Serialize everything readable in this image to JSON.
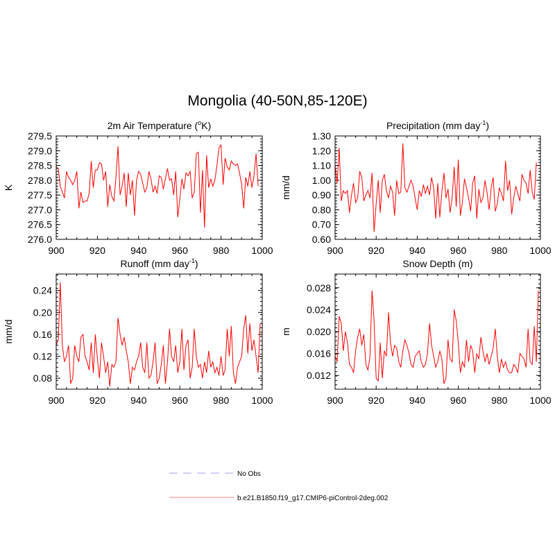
{
  "figure_title": "Mongolia (40-50N,85-120E)",
  "legend": {
    "entries": [
      {
        "label": "No Obs",
        "style": "dashed",
        "color": "#9c9cf0"
      },
      {
        "label": "b.e21.B1850.f19_g17.CMIP6-piControl-2deg.002",
        "style": "solid",
        "color": "#f08080"
      }
    ]
  },
  "series_color": "#ff0000",
  "chart_data": [
    {
      "type": "line",
      "title": "2m Air Temperature (",
      "title_sup": "o",
      "title_tail": "K)",
      "ylabel": "K",
      "xlim": [
        900,
        1000
      ],
      "ylim": [
        276.0,
        279.5
      ],
      "xticks": [
        900,
        920,
        940,
        960,
        980,
        1000
      ],
      "xtick_labels": [
        "900",
        "920",
        "940",
        "960",
        "980",
        "1000"
      ],
      "yticks": [
        276.0,
        276.5,
        277.0,
        277.5,
        278.0,
        278.5,
        279.0,
        279.5
      ],
      "ytick_labels": [
        "276.0",
        "276.5",
        "277.0",
        "277.5",
        "278.0",
        "278.5",
        "279.0",
        "279.5"
      ],
      "x_start": 900,
      "values": [
        278.45,
        278.4,
        277.8,
        277.6,
        277.4,
        278.3,
        278.1,
        278.0,
        277.85,
        278.0,
        278.3,
        277.05,
        277.6,
        277.25,
        277.3,
        277.3,
        277.55,
        278.65,
        277.75,
        278.35,
        278.35,
        278.6,
        278.55,
        278.0,
        278.3,
        277.1,
        277.85,
        277.45,
        277.3,
        278.1,
        279.15,
        277.5,
        277.8,
        278.25,
        277.1,
        278.25,
        277.5,
        278.0,
        276.8,
        278.0,
        278.3,
        278.2,
        277.9,
        277.6,
        277.75,
        278.3,
        278.05,
        277.6,
        277.8,
        277.55,
        278.15,
        278.1,
        277.7,
        278.05,
        278.4,
        278.0,
        278.05,
        277.5,
        278.3,
        276.75,
        277.35,
        278.05,
        277.7,
        278.25,
        278.15,
        278.3,
        277.4,
        277.6,
        278.9,
        278.95,
        276.9,
        278.35,
        276.4,
        278.85,
        277.75,
        278.05,
        277.8,
        278.0,
        278.5,
        279.1,
        279.2,
        277.85,
        278.75,
        278.45,
        278.35,
        278.65,
        278.55,
        278.5,
        278.55,
        278.25,
        277.85,
        277.05,
        278.1,
        277.8,
        278.3,
        277.75,
        278.15,
        278.9,
        277.8
      ]
    },
    {
      "type": "line",
      "title": "Precipitation (mm day",
      "title_sup": "-1",
      "title_tail": ")",
      "ylabel": "mm/d",
      "xlim": [
        900,
        1000
      ],
      "ylim": [
        0.6,
        1.3
      ],
      "xticks": [
        900,
        920,
        940,
        960,
        980,
        1000
      ],
      "xtick_labels": [
        "900",
        "920",
        "940",
        "960",
        "980",
        "1000"
      ],
      "yticks": [
        0.6,
        0.7,
        0.8,
        0.9,
        1.0,
        1.1,
        1.2,
        1.3
      ],
      "ytick_labels": [
        "0.60",
        "0.70",
        "0.80",
        "0.90",
        "1.00",
        "1.10",
        "1.20",
        "1.30"
      ],
      "x_start": 900,
      "values": [
        1.1,
        0.98,
        1.22,
        0.86,
        0.93,
        0.91,
        0.93,
        0.78,
        0.9,
        0.98,
        0.85,
        0.88,
        1.06,
        1.02,
        0.86,
        0.9,
        0.93,
        0.88,
        1.05,
        0.65,
        0.84,
        1.0,
        0.78,
        1.0,
        1.04,
        0.93,
        0.88,
        0.96,
        0.92,
        0.76,
        1.0,
        0.91,
        0.92,
        1.25,
        0.95,
        0.92,
        0.96,
        1.0,
        0.96,
        0.88,
        0.8,
        0.93,
        0.89,
        0.97,
        0.91,
        0.96,
        0.9,
        1.02,
        0.95,
        0.74,
        0.98,
        0.75,
        0.92,
        1.05,
        0.88,
        0.94,
        0.78,
        0.88,
        1.09,
        0.82,
        1.14,
        0.76,
        0.85,
        1.01,
        0.95,
        0.88,
        0.79,
        0.98,
        1.03,
        0.74,
        0.94,
        0.85,
        0.88,
        1.0,
        0.92,
        0.8,
        0.95,
        1.02,
        0.79,
        0.84,
        0.95,
        0.91,
        0.86,
        1.13,
        0.93,
        1.0,
        0.77,
        0.88,
        0.96,
        0.91,
        0.86,
        1.04,
        1.0,
        0.98,
        0.91,
        1.07,
        0.92,
        0.87,
        1.12
      ]
    },
    {
      "type": "line",
      "title": "Runoff (mm day",
      "title_sup": "-1",
      "title_tail": ")",
      "ylabel": "mm/d",
      "xlim": [
        900,
        1000
      ],
      "ylim": [
        0.06,
        0.27
      ],
      "xticks": [
        900,
        920,
        940,
        960,
        980,
        1000
      ],
      "xtick_labels": [
        "900",
        "920",
        "940",
        "960",
        "980",
        "1000"
      ],
      "yticks": [
        0.08,
        0.12,
        0.16,
        0.2,
        0.24
      ],
      "ytick_labels": [
        "0.08",
        "0.12",
        "0.16",
        "0.20",
        "0.24"
      ],
      "x_start": 900,
      "values": [
        0.14,
        0.15,
        0.255,
        0.14,
        0.11,
        0.12,
        0.14,
        0.07,
        0.08,
        0.14,
        0.12,
        0.11,
        0.155,
        0.16,
        0.12,
        0.11,
        0.095,
        0.145,
        0.09,
        0.16,
        0.115,
        0.08,
        0.145,
        0.12,
        0.09,
        0.11,
        0.065,
        0.105,
        0.1,
        0.11,
        0.19,
        0.16,
        0.14,
        0.155,
        0.13,
        0.11,
        0.07,
        0.1,
        0.095,
        0.11,
        0.12,
        0.145,
        0.1,
        0.09,
        0.145,
        0.08,
        0.085,
        0.11,
        0.145,
        0.07,
        0.08,
        0.105,
        0.14,
        0.07,
        0.11,
        0.17,
        0.12,
        0.11,
        0.14,
        0.09,
        0.11,
        0.17,
        0.095,
        0.14,
        0.15,
        0.08,
        0.1,
        0.17,
        0.12,
        0.1,
        0.105,
        0.08,
        0.11,
        0.09,
        0.13,
        0.1,
        0.11,
        0.09,
        0.1,
        0.085,
        0.12,
        0.085,
        0.095,
        0.17,
        0.12,
        0.175,
        0.09,
        0.07,
        0.1,
        0.11,
        0.12,
        0.17,
        0.195,
        0.125,
        0.18,
        0.13,
        0.15,
        0.12,
        0.09,
        0.18
      ]
    },
    {
      "type": "line",
      "title": "Snow Depth (m)",
      "title_sup": "",
      "title_tail": "",
      "ylabel": "m",
      "xlim": [
        900,
        1000
      ],
      "ylim": [
        0.0095,
        0.0305
      ],
      "xticks": [
        900,
        920,
        940,
        960,
        980,
        1000
      ],
      "xtick_labels": [
        "900",
        "920",
        "940",
        "960",
        "980",
        "1000"
      ],
      "yticks": [
        0.012,
        0.016,
        0.02,
        0.024,
        0.028
      ],
      "ytick_labels": [
        "0.012",
        "0.016",
        "0.020",
        "0.024",
        "0.028"
      ],
      "x_start": 900,
      "values": [
        0.0155,
        0.0145,
        0.0228,
        0.0215,
        0.0165,
        0.02,
        0.018,
        0.014,
        0.0135,
        0.0125,
        0.0165,
        0.019,
        0.0205,
        0.0175,
        0.0195,
        0.014,
        0.013,
        0.0155,
        0.0275,
        0.022,
        0.0115,
        0.011,
        0.018,
        0.0115,
        0.0165,
        0.0155,
        0.0235,
        0.018,
        0.0155,
        0.0175,
        0.017,
        0.0145,
        0.0135,
        0.0165,
        0.0185,
        0.0175,
        0.016,
        0.014,
        0.0135,
        0.0155,
        0.016,
        0.0165,
        0.0145,
        0.0135,
        0.014,
        0.016,
        0.0215,
        0.0175,
        0.0155,
        0.0135,
        0.0145,
        0.0165,
        0.015,
        0.0105,
        0.0115,
        0.0185,
        0.015,
        0.0145,
        0.024,
        0.022,
        0.018,
        0.0125,
        0.0145,
        0.0135,
        0.0185,
        0.0145,
        0.0175,
        0.0165,
        0.0125,
        0.016,
        0.015,
        0.019,
        0.0165,
        0.0145,
        0.016,
        0.014,
        0.0155,
        0.017,
        0.0205,
        0.0155,
        0.0125,
        0.015,
        0.0135,
        0.0145,
        0.013,
        0.0125,
        0.0125,
        0.014,
        0.0135,
        0.0125,
        0.016,
        0.0155,
        0.015,
        0.0135,
        0.0205,
        0.0145,
        0.014,
        0.021,
        0.0145,
        0.0275
      ]
    }
  ]
}
